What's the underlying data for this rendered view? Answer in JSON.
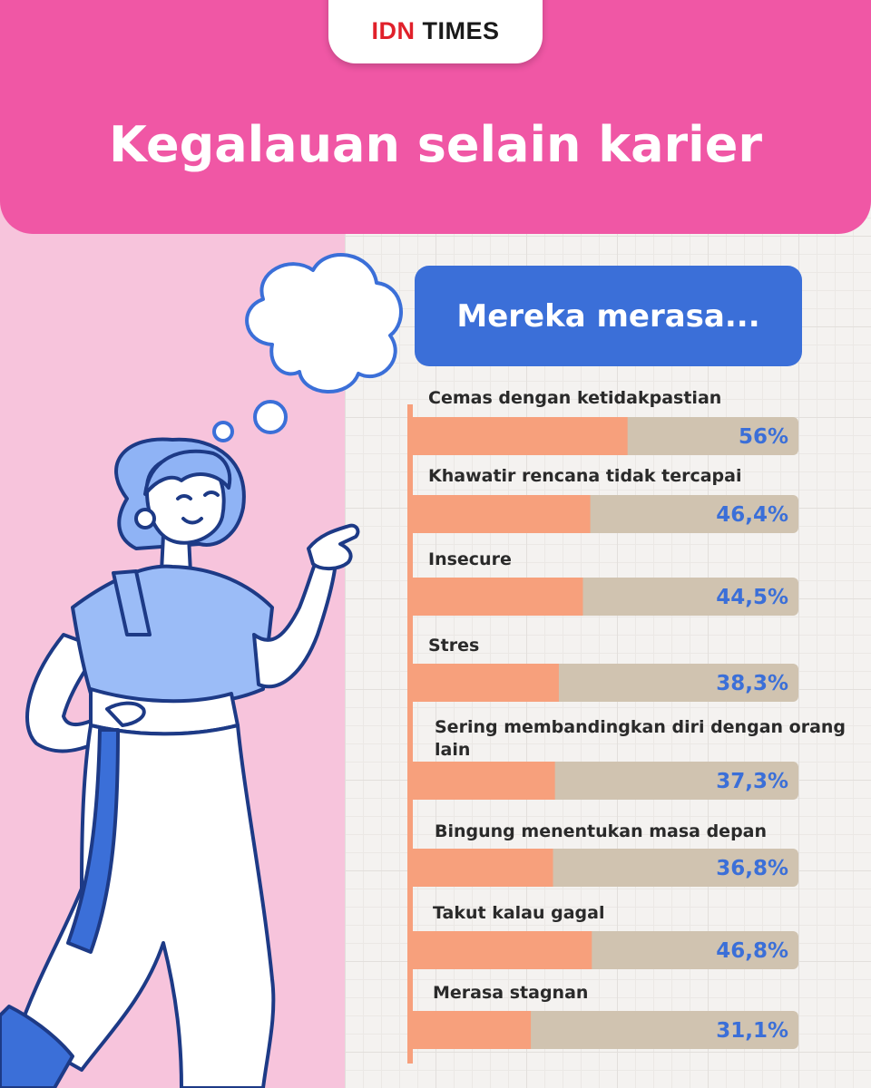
{
  "header": {
    "logo_idn": "IDN",
    "logo_times": "TIMES",
    "title": "Kegalauan selain karier"
  },
  "subtitle": "Mereka merasa...",
  "colors": {
    "header_pink": "#f057a5",
    "panel_pink": "#f7c4dc",
    "accent_blue": "#3b6fd8",
    "bar_fill": "#f7a07c",
    "bar_track": "#d0c3b0"
  },
  "chart_data": {
    "type": "bar",
    "orientation": "horizontal",
    "categories": [
      "Cemas dengan ketidakpastian",
      "Khawatir rencana tidak tercapai",
      "Insecure",
      "Stres",
      "Sering membandingkan diri dengan orang lain",
      "Bingung menentukan masa depan",
      "Takut kalau gagal",
      "Merasa stagnan"
    ],
    "values": [
      56,
      46.4,
      44.5,
      38.3,
      37.3,
      36.8,
      46.8,
      31.1
    ],
    "value_labels": [
      "56%",
      "46,4%",
      "44,5%",
      "38,3%",
      "37,3%",
      "36,8%",
      "46,8%",
      "31,1%"
    ],
    "xlim": [
      0,
      100
    ]
  }
}
